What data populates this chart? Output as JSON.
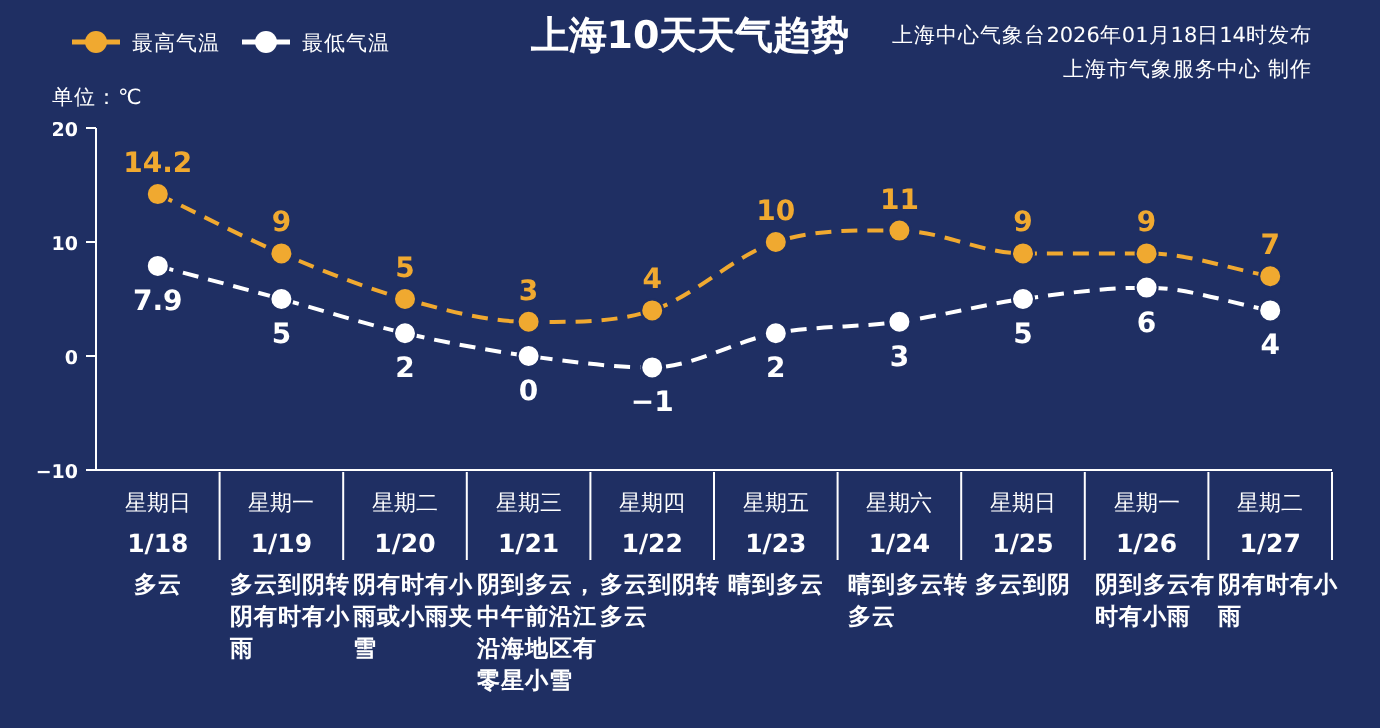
{
  "chart_data": {
    "type": "line",
    "title": "上海10天天气趋势",
    "annotations": [
      "上海中心气象台2026年01月18日14时发布",
      "上海市气象服务中心  制作"
    ],
    "ylabel": "单位：℃",
    "categories": [
      "星期日\n1/18\n多云",
      "星期一\n1/19\n多云到阴转阴有时有小雨",
      "星期二\n1/20\n阴有时有小雨或小雨夹雪",
      "星期三\n1/21\n阴到多云，中午前沿江沿海地区有零星小雪",
      "星期四\n1/22\n多云到阴转多云",
      "星期五\n1/23\n晴到多云",
      "星期六\n1/24\n晴到多云转多云",
      "星期日\n1/25\n多云到阴",
      "星期一\n1/26\n阴到多云有时有小雨",
      "星期二\n1/27\n阴有时有小雨"
    ],
    "series": [
      {
        "name": "最高气温",
        "color": "#f0a930",
        "values": [
          14.2,
          9,
          5,
          3,
          4,
          10,
          11,
          9,
          9,
          7
        ]
      },
      {
        "name": "最低气温",
        "color": "#ffffff",
        "values": [
          7.9,
          5,
          2,
          0,
          -1,
          2,
          3,
          5,
          6,
          4
        ]
      }
    ],
    "ylim": [
      -10,
      20
    ],
    "yticks": [
      -10,
      0,
      10,
      20
    ],
    "grid": false,
    "legend": "top left",
    "marker": "circle",
    "line_style": "dashed",
    "data_labels": true
  }
}
